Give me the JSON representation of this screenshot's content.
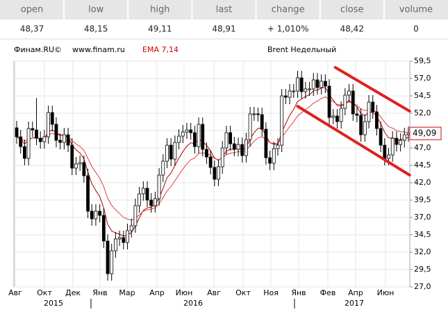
{
  "quote_table": {
    "headers": [
      "open",
      "low",
      "high",
      "last",
      "change",
      "close",
      "volume"
    ],
    "values": [
      "48,37",
      "48,15",
      "49,11",
      "48,91",
      "+ 1,010%",
      "48,42",
      "0"
    ]
  },
  "chart_data": {
    "type": "candlestick",
    "source": "Финам.RU©",
    "url": "www.finam.ru",
    "indicator": "EMA 7,14",
    "title": "Brent Недельный",
    "x_labels": [
      "Авг",
      "Окт",
      "Дек",
      "Янв",
      "Мар",
      "Апр",
      "Июн",
      "Авг",
      "Окт",
      "Ноя",
      "Янв",
      "Фев",
      "Апр",
      "Июн"
    ],
    "years": [
      "2015",
      "2016",
      "2017"
    ],
    "candles": {
      "open": [
        49.9,
        48.6,
        47.2,
        45.5,
        49.8,
        49.6,
        48.4,
        47.9,
        48.6,
        52.1,
        50.4,
        48.1,
        47.8,
        48.9,
        47.4,
        44.1,
        44.7,
        44.9,
        43.0,
        37.9,
        36.8,
        37.9,
        37.3,
        33.6,
        28.9,
        32.2,
        33.9,
        34.1,
        33.4,
        35.1,
        35.8,
        38.7,
        40.4,
        41.2,
        39.5,
        38.7,
        39.7,
        43.1,
        45.1,
        47.4,
        45.4,
        47.8,
        48.7,
        49.3,
        49.6,
        49.2,
        47.2,
        50.4,
        46.8,
        45.7,
        44.2,
        42.5,
        44.3,
        47.0,
        49.2,
        47.6,
        46.8,
        47.5,
        45.9,
        48.2,
        51.9,
        51.9,
        51.8,
        49.7,
        45.6,
        44.8,
        46.9,
        47.4,
        54.5,
        54.3,
        55.2,
        55.2,
        57.1,
        55.1,
        55.5,
        55.5,
        56.8,
        55.7,
        56.6,
        55.9,
        51.4,
        51.6,
        50.8,
        52.7,
        54.6,
        55.2,
        51.9,
        51.7,
        48.9,
        50.8,
        53.6,
        52.2,
        49.8,
        47.4,
        45.5,
        46.0,
        48.4,
        47.5,
        48.1,
        48.9
      ],
      "high": [
        50.9,
        49.6,
        48.2,
        50.8,
        50.8,
        54.2,
        49.4,
        49.6,
        53.1,
        53.1,
        51.4,
        49.1,
        49.9,
        49.9,
        48.4,
        45.7,
        45.9,
        45.9,
        44.0,
        38.9,
        38.9,
        38.9,
        38.3,
        34.6,
        33.2,
        34.9,
        35.1,
        35.1,
        36.1,
        36.8,
        39.7,
        41.4,
        42.2,
        42.2,
        40.5,
        40.7,
        44.1,
        46.1,
        48.4,
        48.4,
        48.8,
        49.7,
        50.3,
        50.6,
        50.6,
        50.2,
        51.4,
        51.4,
        47.8,
        46.7,
        45.2,
        45.3,
        48.0,
        50.2,
        50.2,
        48.6,
        48.5,
        48.5,
        49.2,
        52.9,
        52.9,
        52.8,
        52.8,
        50.7,
        46.6,
        47.9,
        48.4,
        55.5,
        55.5,
        56.2,
        56.2,
        58.1,
        58.1,
        56.5,
        56.5,
        57.8,
        57.8,
        57.6,
        57.6,
        56.9,
        52.6,
        52.6,
        53.7,
        55.6,
        56.2,
        56.2,
        52.9,
        52.7,
        51.8,
        54.6,
        54.6,
        53.2,
        50.8,
        48.4,
        47.0,
        49.4,
        49.4,
        49.1,
        49.9,
        50.09
      ],
      "low": [
        47.6,
        46.2,
        44.5,
        44.5,
        48.6,
        47.4,
        46.9,
        46.9,
        47.6,
        49.4,
        47.1,
        46.8,
        46.8,
        46.4,
        43.1,
        43.1,
        43.7,
        42.0,
        36.9,
        35.8,
        35.8,
        36.3,
        32.6,
        27.9,
        27.9,
        31.2,
        32.9,
        32.4,
        32.4,
        34.1,
        34.8,
        37.7,
        39.4,
        38.5,
        37.7,
        37.7,
        38.7,
        42.1,
        44.1,
        44.4,
        44.4,
        46.8,
        47.7,
        48.3,
        48.2,
        46.2,
        46.2,
        45.8,
        44.7,
        43.2,
        41.5,
        41.5,
        43.3,
        46.0,
        46.6,
        45.8,
        45.8,
        44.9,
        44.9,
        47.2,
        50.9,
        50.8,
        48.7,
        44.6,
        43.8,
        43.8,
        45.9,
        46.4,
        53.3,
        53.3,
        54.2,
        54.2,
        54.1,
        54.1,
        54.5,
        54.5,
        54.7,
        54.7,
        54.9,
        50.4,
        50.4,
        49.8,
        49.8,
        51.7,
        53.6,
        50.9,
        50.7,
        47.9,
        47.9,
        49.8,
        51.2,
        48.8,
        46.4,
        44.5,
        44.5,
        45.0,
        46.5,
        46.5,
        47.1,
        47.9
      ],
      "close": [
        48.6,
        47.2,
        45.5,
        49.8,
        49.6,
        48.4,
        47.9,
        48.6,
        52.1,
        50.4,
        48.1,
        47.8,
        48.9,
        47.4,
        44.1,
        44.7,
        44.9,
        43.0,
        37.9,
        36.8,
        37.9,
        37.3,
        33.6,
        28.9,
        32.2,
        33.9,
        34.1,
        33.4,
        35.1,
        35.8,
        38.7,
        40.4,
        41.2,
        39.5,
        38.7,
        39.7,
        43.1,
        45.1,
        47.4,
        45.4,
        47.8,
        48.7,
        49.3,
        49.6,
        49.2,
        47.2,
        50.4,
        46.8,
        45.7,
        44.2,
        42.5,
        44.3,
        47.0,
        49.2,
        47.6,
        46.8,
        47.5,
        45.9,
        48.2,
        51.9,
        51.9,
        51.8,
        49.7,
        45.6,
        44.8,
        46.9,
        47.4,
        54.5,
        54.3,
        55.2,
        55.2,
        57.1,
        55.1,
        55.5,
        55.5,
        56.8,
        55.7,
        56.6,
        55.9,
        51.4,
        51.6,
        50.8,
        52.7,
        54.6,
        55.2,
        51.9,
        51.7,
        48.9,
        50.8,
        53.6,
        52.2,
        49.8,
        47.4,
        45.5,
        46.0,
        48.4,
        47.5,
        48.1,
        48.9,
        49.09
      ]
    },
    "ema_periods": [
      7,
      14
    ],
    "ema_colors": [
      "#b00000",
      "#e04040"
    ],
    "trend_lines": [
      {
        "x": [
          80.5,
          99.3
        ],
        "y": [
          58.6,
          52.3
        ]
      },
      {
        "x": [
          71,
          99.3
        ],
        "y": [
          53.0,
          43.1
        ]
      }
    ],
    "trend_color": "#e02020",
    "current": {
      "value": 49.09,
      "label": "49,09"
    },
    "ylim": [
      27.0,
      59.5
    ],
    "yticks": [
      {
        "value": 27.0,
        "label": "27,0"
      },
      {
        "value": 29.5,
        "label": "29,5"
      },
      {
        "value": 32.0,
        "label": "32,0"
      },
      {
        "value": 34.5,
        "label": "34,5"
      },
      {
        "value": 37.0,
        "label": "37,0"
      },
      {
        "value": 39.5,
        "label": "39,5"
      },
      {
        "value": 42.0,
        "label": "42,0"
      },
      {
        "value": 44.5,
        "label": "44,5"
      },
      {
        "value": 47.0,
        "label": "47,0"
      },
      {
        "value": 49.5,
        "label": "49,5"
      },
      {
        "value": 52.0,
        "label": "52,0"
      },
      {
        "value": 54.5,
        "label": "54,5"
      },
      {
        "value": 57.0,
        "label": "57,0"
      },
      {
        "value": 59.5,
        "label": "59,5"
      }
    ],
    "grid": true
  }
}
